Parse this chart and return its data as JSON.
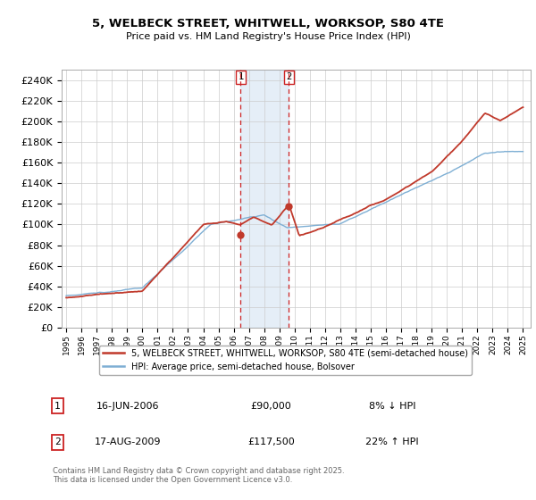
{
  "title": "5, WELBECK STREET, WHITWELL, WORKSOP, S80 4TE",
  "subtitle": "Price paid vs. HM Land Registry's House Price Index (HPI)",
  "ylim": [
    0,
    250000
  ],
  "yticks": [
    0,
    20000,
    40000,
    60000,
    80000,
    100000,
    120000,
    140000,
    160000,
    180000,
    200000,
    220000,
    240000
  ],
  "hpi_color": "#7eafd4",
  "price_color": "#c0392b",
  "marker1_date": 2006.46,
  "marker1_price": 90000,
  "marker2_date": 2009.63,
  "marker2_price": 117500,
  "shade_color": "#ccdff0",
  "vline_color": "#cc2222",
  "legend_label_price": "5, WELBECK STREET, WHITWELL, WORKSOP, S80 4TE (semi-detached house)",
  "legend_label_hpi": "HPI: Average price, semi-detached house, Bolsover",
  "table_row1": [
    "1",
    "16-JUN-2006",
    "£90,000",
    "8% ↓ HPI"
  ],
  "table_row2": [
    "2",
    "17-AUG-2009",
    "£117,500",
    "22% ↑ HPI"
  ],
  "footer": "Contains HM Land Registry data © Crown copyright and database right 2025.\nThis data is licensed under the Open Government Licence v3.0.",
  "bg_color": "#ffffff",
  "grid_color": "#cccccc",
  "xlim_left": 1994.7,
  "xlim_right": 2025.5
}
